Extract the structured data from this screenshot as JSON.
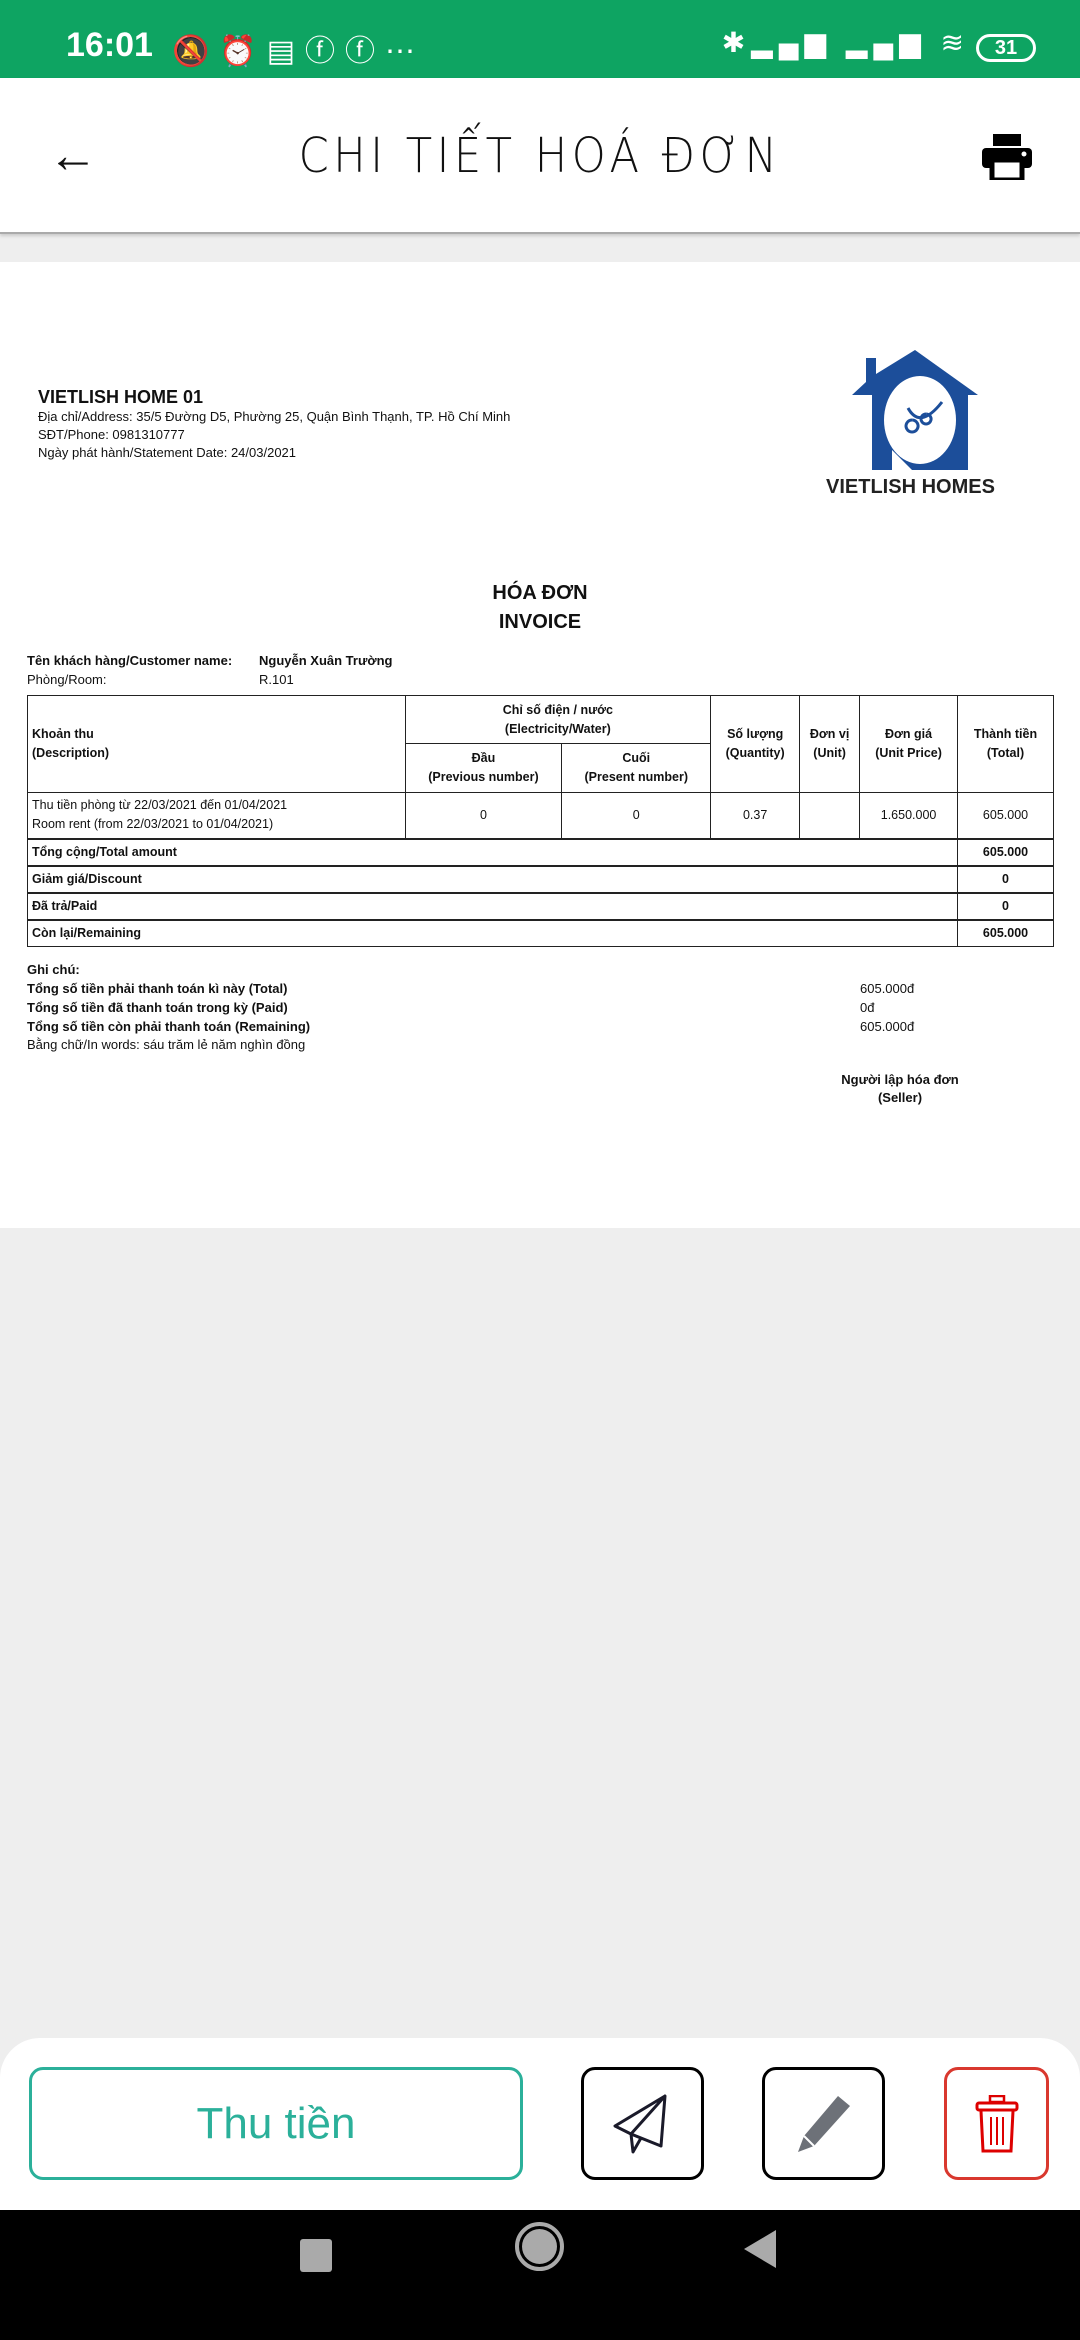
{
  "status_bar": {
    "time": "16:01",
    "battery": "31",
    "notification_icons": [
      "bell-off-icon",
      "alarm-icon",
      "news-icon",
      "facebook-icon",
      "facebook-icon",
      "more-icon"
    ],
    "system_icons": [
      "bluetooth-icon",
      "signal-icon",
      "signal-icon",
      "wifi-icon"
    ]
  },
  "header": {
    "title": "CHI TIẾT HOÁ ĐƠN"
  },
  "invoice": {
    "company": "VIETLISH HOME 01",
    "address": "Địa chỉ/Address: 35/5 Đường D5, Phường 25, Quận Bình Thạnh, TP. Hồ Chí Minh",
    "phone": "SĐT/Phone: 0981310777",
    "date": "Ngày phát hành/Statement Date: 24/03/2021",
    "logo_text": "VIETLISH HOMES",
    "title_vi": "HÓA ĐƠN",
    "title_en": "INVOICE",
    "customer_label": "Tên khách hàng/Customer name:",
    "customer_value": "Nguyễn Xuân Trường",
    "room_label": "Phòng/Room:",
    "room_value": "R.101",
    "table": {
      "h_desc1": "Khoản thu",
      "h_desc2": "(Description)",
      "h_meter1": "Chỉ số điện / nước",
      "h_meter2": "(Electricity/Water)",
      "h_prev1": "Đầu",
      "h_prev2": "(Previous number)",
      "h_pres1": "Cuối",
      "h_pres2": "(Present number)",
      "h_qty1": "Số lượng",
      "h_qty2": "(Quantity)",
      "h_unit1": "Đơn vị",
      "h_unit2": "(Unit)",
      "h_price1": "Đơn giá",
      "h_price2": "(Unit Price)",
      "h_total1": "Thành tiền",
      "h_total2": "(Total)",
      "rows": [
        {
          "desc1": "Thu tiền phòng từ 22/03/2021 đến 01/04/2021",
          "desc2": "Room rent (from 22/03/2021 to 01/04/2021)",
          "prev": "0",
          "pres": "0",
          "qty": "0.37",
          "unit": "",
          "price": "1.650.000",
          "total": "605.000"
        }
      ],
      "summary": [
        {
          "label": "Tổng cộng/Total amount",
          "value": "605.000"
        },
        {
          "label": "Giảm giá/Discount",
          "value": "0"
        },
        {
          "label": "Đã trả/Paid",
          "value": "0"
        },
        {
          "label": "Còn lại/Remaining",
          "value": "605.000"
        }
      ]
    },
    "notes_label": "Ghi chú:",
    "notes": [
      {
        "label": "Tổng số tiền phải thanh toán kì này (Total)",
        "value": "605.000đ"
      },
      {
        "label": "Tổng số tiền đã thanh toán trong kỳ (Paid)",
        "value": "0đ"
      },
      {
        "label": "Tổng số tiền còn phải thanh toán (Remaining)",
        "value": "605.000đ"
      }
    ],
    "in_words": "Bằng chữ/In words: sáu trăm lẻ năm nghìn đồng",
    "seller1": "Người lập hóa đơn",
    "seller2": "(Seller)"
  },
  "actions": {
    "collect_label": "Thu tiền",
    "accent": "#2bb09a",
    "danger": "#d9382e"
  }
}
